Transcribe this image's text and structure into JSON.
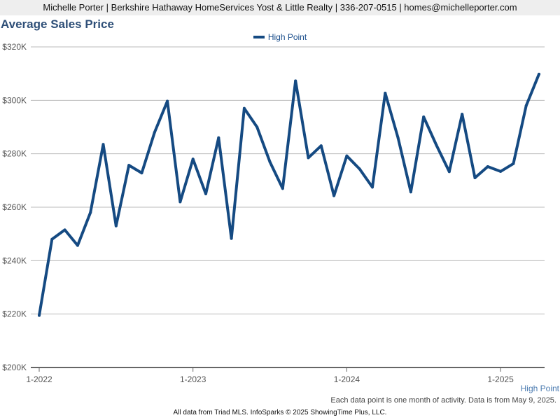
{
  "header": {
    "text": "Michelle Porter | Berkshire Hathaway HomeServices Yost & Little Realty | 336-207-0515 | homes@michelleporter.com"
  },
  "footer": {
    "note": "Each data point is one month of activity. Data is from May 9, 2025.",
    "source": "All data from Triad MLS. InfoSparks © 2025 ShowingTime Plus, LLC.",
    "series_corner_label": "High Point"
  },
  "colors": {
    "series": "#154a82",
    "title": "#2e4f78",
    "grid": "#bbbbbb",
    "axis": "#666666"
  },
  "chart_data": {
    "type": "line",
    "title": "Average Sales Price",
    "xlabel": "",
    "ylabel": "",
    "ylim": [
      200000,
      320000
    ],
    "yticks": [
      200000,
      220000,
      240000,
      260000,
      280000,
      300000,
      320000
    ],
    "ytick_labels": [
      "$200K",
      "$220K",
      "$240K",
      "$260K",
      "$280K",
      "$300K",
      "$320K"
    ],
    "xtick_labels": [
      "1-2022",
      "1-2023",
      "1-2024",
      "1-2025"
    ],
    "xtick_positions": [
      "2022-01",
      "2023-01",
      "2024-01",
      "2025-01"
    ],
    "grid": true,
    "legend_position": "top-center",
    "x": [
      "2022-01",
      "2022-02",
      "2022-03",
      "2022-04",
      "2022-05",
      "2022-06",
      "2022-07",
      "2022-08",
      "2022-09",
      "2022-10",
      "2022-11",
      "2022-12",
      "2023-01",
      "2023-02",
      "2023-03",
      "2023-04",
      "2023-05",
      "2023-06",
      "2023-07",
      "2023-08",
      "2023-09",
      "2023-10",
      "2023-11",
      "2023-12",
      "2024-01",
      "2024-02",
      "2024-03",
      "2024-04",
      "2024-05",
      "2024-06",
      "2024-07",
      "2024-08",
      "2024-09",
      "2024-10",
      "2024-11",
      "2024-12",
      "2025-01",
      "2025-02",
      "2025-03",
      "2025-04"
    ],
    "series": [
      {
        "name": "High Point",
        "values": [
          219500,
          248000,
          251500,
          245700,
          258000,
          283500,
          253000,
          275700,
          272800,
          288000,
          299700,
          262000,
          278000,
          265000,
          286000,
          248300,
          297000,
          290000,
          277000,
          267000,
          307300,
          278500,
          283000,
          264300,
          279200,
          274300,
          267500,
          302700,
          286000,
          265700,
          293800,
          283200,
          273300,
          294800,
          271000,
          275200,
          273400,
          276300,
          298000,
          309800
        ]
      }
    ]
  }
}
